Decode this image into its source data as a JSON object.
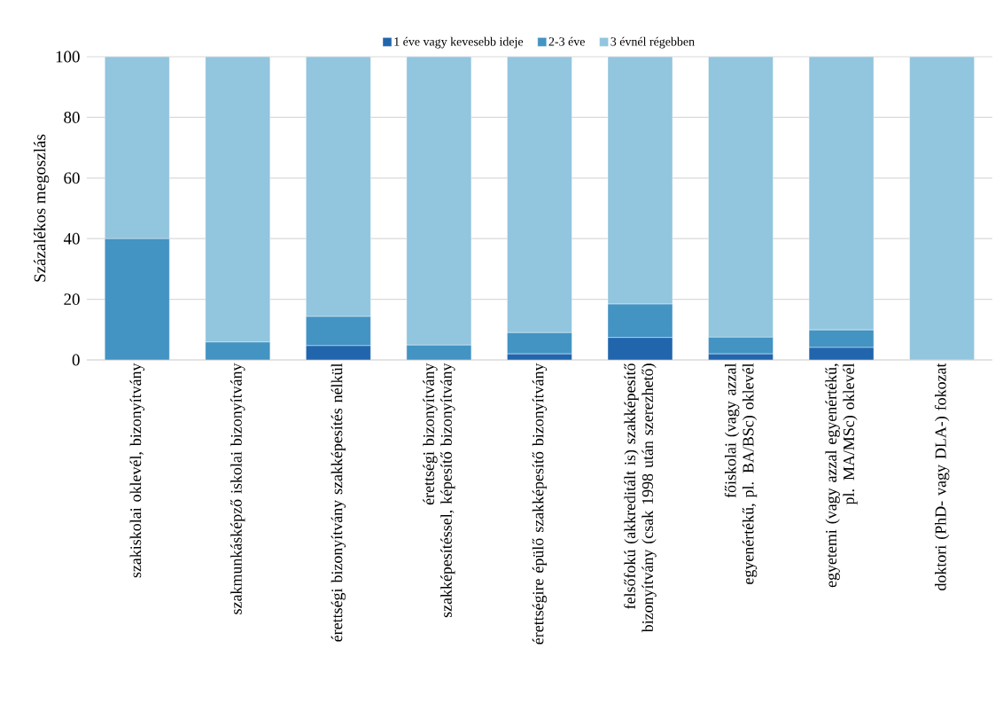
{
  "chart_data": {
    "type": "bar",
    "stacked": true,
    "ylabel": "Százalékos megoszlás",
    "categories": [
      "szakiskolai oklevél, bizonyítvány",
      "szakmunkásképző iskolai bizonyítvány",
      "érettségi bizonyítvány szakképesítés nélkül",
      "érettségi bizonyítvány szakképesítéssel, képesítő bizonyítvány",
      "érettségire épülő szakképesítő bizonyítvány",
      "felsőfokú (akkreditált is) szakképesítő bizonyítvány (csak 1998 után szerezhető)",
      "főiskolai (vagy azzal egyenértékű, pl. BA/BSc) oklevél",
      "egyetemi (vagy azzal egyenértékű, pl. MA/MSc) oklevél",
      "doktori (PhD- vagy DLA-) fokozat"
    ],
    "series": [
      {
        "name": "1 éve vagy kevesebb ideje",
        "color": "#2166ac",
        "values": [
          0,
          0,
          4.7,
          0,
          2.0,
          7.4,
          2.0,
          4.1,
          0
        ]
      },
      {
        "name": "2-3 éve",
        "color": "#4393c3",
        "values": [
          40,
          5.9,
          9.6,
          4.9,
          7.0,
          11.0,
          5.5,
          5.8,
          0
        ]
      },
      {
        "name": "3 évnél régebben",
        "color": "#92c5de",
        "values": [
          60,
          94.1,
          85.7,
          95.1,
          91.0,
          81.6,
          92.5,
          90.1,
          100
        ]
      }
    ],
    "ylim": [
      0,
      100
    ],
    "yticks": [
      0,
      20,
      40,
      60,
      80,
      100
    ],
    "grid": "y",
    "legend": "top"
  }
}
